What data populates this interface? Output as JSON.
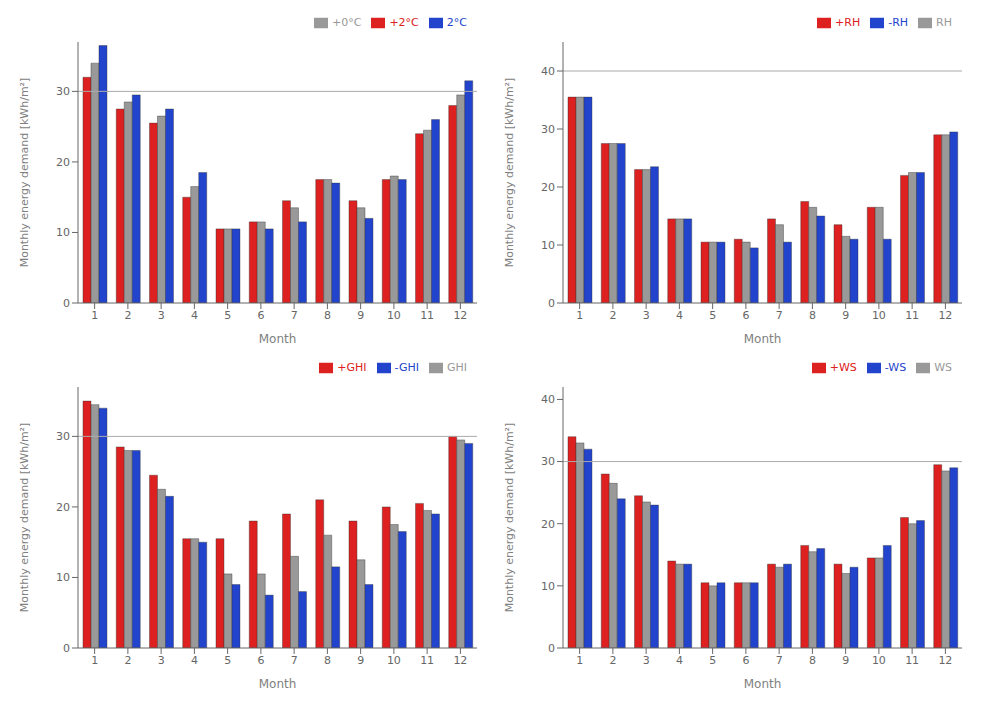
{
  "chart_data": [
    {
      "type": "bar",
      "x_label": "Month",
      "y_label": "Monthly energy demand [kWh/m²]",
      "categories": [
        "1",
        "2",
        "3",
        "4",
        "5",
        "6",
        "7",
        "8",
        "9",
        "10",
        "11",
        "12"
      ],
      "series": [
        {
          "name": "+2°C",
          "color": "#dd2020",
          "values": [
            32.0,
            27.5,
            25.5,
            15.0,
            10.5,
            11.5,
            14.5,
            17.5,
            14.5,
            17.5,
            24.0,
            28.0
          ]
        },
        {
          "name": "+0°C",
          "color": "#999999",
          "values": [
            34.0,
            28.5,
            26.5,
            16.5,
            10.5,
            11.5,
            13.5,
            17.5,
            13.5,
            18.0,
            24.5,
            29.5
          ]
        },
        {
          "name": "2°C",
          "color": "#2244cc",
          "values": [
            36.5,
            29.5,
            27.5,
            18.5,
            10.5,
            10.5,
            11.5,
            17.0,
            12.0,
            17.5,
            26.0,
            31.5
          ]
        }
      ],
      "hline": {
        "value": 30,
        "color": "#aaaaaa"
      },
      "ylim": [
        0,
        37
      ],
      "yticks": [
        0,
        10,
        20,
        30
      ],
      "grid": false,
      "legend": "upper right"
    },
    {
      "type": "bar",
      "x_label": "Month",
      "y_label": "Monthly energy demand [kWh/m²]",
      "categories": [
        "1",
        "2",
        "3",
        "4",
        "5",
        "6",
        "7",
        "8",
        "9",
        "10",
        "11",
        "12"
      ],
      "series": [
        {
          "name": "+RH",
          "color": "#dd2020",
          "values": [
            35.5,
            27.5,
            23.0,
            14.5,
            10.5,
            11.0,
            14.5,
            17.5,
            13.5,
            16.5,
            22.0,
            29.0
          ]
        },
        {
          "name": "RH",
          "color": "#999999",
          "values": [
            35.5,
            27.5,
            23.0,
            14.5,
            10.5,
            10.5,
            13.5,
            16.5,
            11.5,
            16.5,
            22.5,
            29.0
          ]
        },
        {
          "name": "-RH",
          "color": "#2244cc",
          "values": [
            35.5,
            27.5,
            23.5,
            14.5,
            10.5,
            9.5,
            10.5,
            15.0,
            11.0,
            11.0,
            22.5,
            29.5
          ]
        }
      ],
      "hline": {
        "value": 40,
        "color": "#aaaaaa"
      },
      "ylim": [
        0,
        45
      ],
      "yticks": [
        0,
        10,
        20,
        30,
        40
      ],
      "grid": false,
      "legend": "upper right"
    },
    {
      "type": "bar",
      "x_label": "Month",
      "y_label": "Monthly energy demand [kWh/m²]",
      "categories": [
        "1",
        "2",
        "3",
        "4",
        "5",
        "6",
        "7",
        "8",
        "9",
        "10",
        "11",
        "12"
      ],
      "series": [
        {
          "name": "+GHI",
          "color": "#dd2020",
          "values": [
            35.0,
            28.5,
            24.5,
            15.5,
            15.5,
            18.0,
            19.0,
            21.0,
            18.0,
            20.0,
            20.5,
            30.0
          ]
        },
        {
          "name": "GHI",
          "color": "#999999",
          "values": [
            34.5,
            28.0,
            22.5,
            15.5,
            10.5,
            10.5,
            13.0,
            16.0,
            12.5,
            17.5,
            19.5,
            29.5
          ]
        },
        {
          "name": "-GHI",
          "color": "#2244cc",
          "values": [
            34.0,
            28.0,
            21.5,
            15.0,
            9.0,
            7.5,
            8.0,
            11.5,
            9.0,
            16.5,
            19.0,
            29.0
          ]
        }
      ],
      "hline": {
        "value": 30,
        "color": "#aaaaaa"
      },
      "ylim": [
        0,
        37
      ],
      "yticks": [
        0,
        10,
        20,
        30
      ],
      "grid": false,
      "legend": "upper right"
    },
    {
      "type": "bar",
      "x_label": "Month",
      "y_label": "Monthly energy demand [kWh/m²]",
      "categories": [
        "1",
        "2",
        "3",
        "4",
        "5",
        "6",
        "7",
        "8",
        "9",
        "10",
        "11",
        "12"
      ],
      "series": [
        {
          "name": "+WS",
          "color": "#dd2020",
          "values": [
            34.0,
            28.0,
            24.5,
            14.0,
            10.5,
            10.5,
            13.5,
            16.5,
            13.5,
            14.5,
            21.0,
            29.5
          ]
        },
        {
          "name": "WS",
          "color": "#999999",
          "values": [
            33.0,
            26.5,
            23.5,
            13.5,
            10.0,
            10.5,
            13.0,
            15.5,
            12.0,
            14.5,
            20.0,
            28.5
          ]
        },
        {
          "name": "-WS",
          "color": "#2244cc",
          "values": [
            32.0,
            24.0,
            23.0,
            13.5,
            10.5,
            10.5,
            13.5,
            16.0,
            13.0,
            16.5,
            20.5,
            29.0
          ]
        }
      ],
      "hline": {
        "value": 30,
        "color": "#aaaaaa"
      },
      "ylim": [
        0,
        42
      ],
      "yticks": [
        0,
        10,
        20,
        30,
        40
      ],
      "grid": false,
      "legend": "upper right"
    }
  ]
}
